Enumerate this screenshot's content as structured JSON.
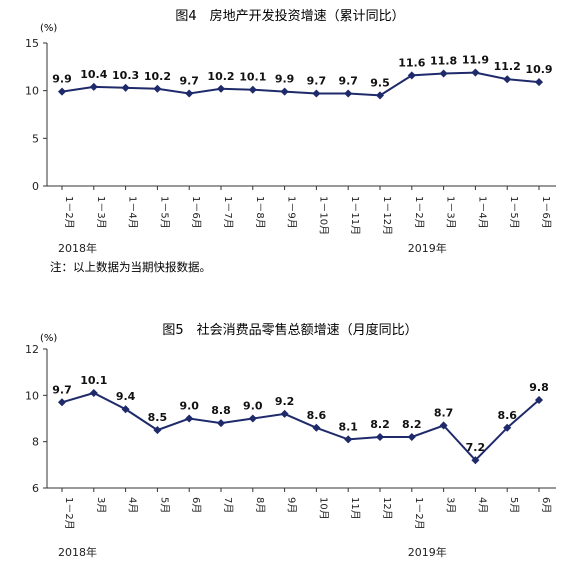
{
  "charts": [
    {
      "title": "图4　房地产开发投资增速（累计同比）",
      "unit": "(%)",
      "note": "注：以上数据为当期快报数据。",
      "year_labels": [
        "2018年",
        "2019年"
      ]
    },
    {
      "title": "图5　社会消费品零售总额增速（月度同比）",
      "unit": "(%)",
      "note": "",
      "year_labels": [
        "2018年",
        "2019年"
      ]
    }
  ],
  "chart_data": [
    {
      "type": "line",
      "title": "图4　房地产开发投资增速（累计同比）",
      "ylabel": "(%)",
      "ylim": [
        0,
        15
      ],
      "yticks": [
        0,
        5,
        10,
        15
      ],
      "categories": [
        "1－2月",
        "1－3月",
        "1－4月",
        "1－5月",
        "1－6月",
        "1－7月",
        "1－8月",
        "1－9月",
        "1－10月",
        "1－11月",
        "1－12月",
        "1－2月",
        "1－3月",
        "1－4月",
        "1－5月",
        "1－6月"
      ],
      "values": [
        9.9,
        10.4,
        10.3,
        10.2,
        9.7,
        10.2,
        10.1,
        9.9,
        9.7,
        9.7,
        9.5,
        11.6,
        11.8,
        11.9,
        11.2,
        10.9
      ],
      "data_labels": [
        "9.9",
        "10.4",
        "10.3",
        "10.2",
        "9.7",
        "10.2",
        "10.1",
        "9.9",
        "9.7",
        "9.7",
        "9.5",
        "11.6",
        "11.8",
        "11.9",
        "11.2",
        "10.9"
      ],
      "year_groups": [
        {
          "label": "2018年",
          "start": 0
        },
        {
          "label": "2019年",
          "start": 11
        }
      ],
      "grid": false,
      "color": "#1f2a6b"
    },
    {
      "type": "line",
      "title": "图5　社会消费品零售总额增速（月度同比）",
      "ylabel": "(%)",
      "ylim": [
        6,
        12
      ],
      "yticks": [
        6,
        8,
        10,
        12
      ],
      "categories": [
        "1－2月",
        "3月",
        "4月",
        "5月",
        "6月",
        "7月",
        "8月",
        "9月",
        "10月",
        "11月",
        "12月",
        "1－2月",
        "3月",
        "4月",
        "5月",
        "6月"
      ],
      "values": [
        9.7,
        10.1,
        9.4,
        8.5,
        9.0,
        8.8,
        9.0,
        9.2,
        8.6,
        8.1,
        8.2,
        8.2,
        8.7,
        7.2,
        8.6,
        9.8
      ],
      "data_labels": [
        "9.7",
        "10.1",
        "9.4",
        "8.5",
        "9.0",
        "8.8",
        "9.0",
        "9.2",
        "8.6",
        "8.1",
        "8.2",
        "8.2",
        "8.7",
        "7.2",
        "8.6",
        "9.8"
      ],
      "year_groups": [
        {
          "label": "2018年",
          "start": 0
        },
        {
          "label": "2019年",
          "start": 11
        }
      ],
      "grid": false,
      "color": "#1f2a6b"
    }
  ]
}
